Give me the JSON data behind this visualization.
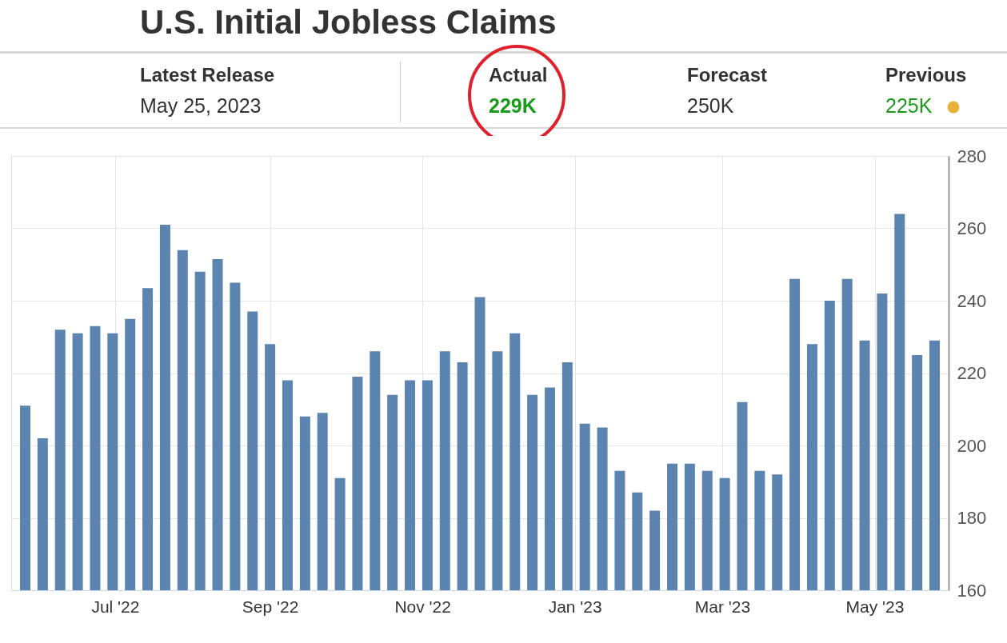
{
  "chart_data": {
    "type": "bar",
    "title": "U.S. Initial Jobless Claims",
    "annotations": [
      "Latest Release",
      "May 25, 2023",
      "Actual",
      "229K",
      "Forecast",
      "250K",
      "Previous",
      "225K"
    ],
    "x": [
      "2022-05-26",
      "2022-06-02",
      "2022-06-09",
      "2022-06-16",
      "2022-06-23",
      "2022-06-30",
      "2022-07-07",
      "2022-07-14",
      "2022-07-21",
      "2022-07-28",
      "2022-08-04",
      "2022-08-11",
      "2022-08-18",
      "2022-08-25",
      "2022-09-01",
      "2022-09-08",
      "2022-09-15",
      "2022-09-22",
      "2022-09-29",
      "2022-10-06",
      "2022-10-13",
      "2022-10-20",
      "2022-10-27",
      "2022-11-03",
      "2022-11-10",
      "2022-11-17",
      "2022-11-24",
      "2022-12-01",
      "2022-12-08",
      "2022-12-15",
      "2022-12-22",
      "2022-12-29",
      "2023-01-05",
      "2023-01-12",
      "2023-01-19",
      "2023-01-26",
      "2023-02-02",
      "2023-02-09",
      "2023-02-16",
      "2023-02-23",
      "2023-03-02",
      "2023-03-09",
      "2023-03-16",
      "2023-03-23",
      "2023-03-30",
      "2023-04-06",
      "2023-04-13",
      "2023-04-20",
      "2023-04-27",
      "2023-05-04",
      "2023-05-11",
      "2023-05-18",
      "2023-05-25"
    ],
    "values": [
      211,
      202,
      232,
      231,
      233,
      231,
      235,
      243.5,
      261,
      254,
      248,
      251.5,
      245,
      237,
      228,
      218,
      208,
      209,
      191,
      219,
      226,
      214,
      218,
      218,
      226,
      223,
      241,
      226,
      231,
      214,
      216,
      223,
      206,
      205,
      193,
      187,
      182,
      195,
      195,
      193,
      191,
      212,
      193,
      192,
      246,
      228,
      240,
      246,
      229,
      242,
      264,
      225,
      229
    ],
    "color": "#5b84b1",
    "xlim": [
      "2022-05-22",
      "2023-05-29"
    ],
    "xticks": [
      {
        "value": "2022-07-01",
        "label": "Jul '22"
      },
      {
        "value": "2022-09-01",
        "label": "Sep '22"
      },
      {
        "value": "2022-11-01",
        "label": "Nov '22"
      },
      {
        "value": "2023-01-01",
        "label": "Jan '23"
      },
      {
        "value": "2023-03-01",
        "label": "Mar '23"
      },
      {
        "value": "2023-05-01",
        "label": "May '23"
      }
    ],
    "ylim": [
      160,
      280
    ],
    "yticks": [
      160,
      180,
      200,
      220,
      240,
      260,
      280
    ],
    "grid": true
  }
}
